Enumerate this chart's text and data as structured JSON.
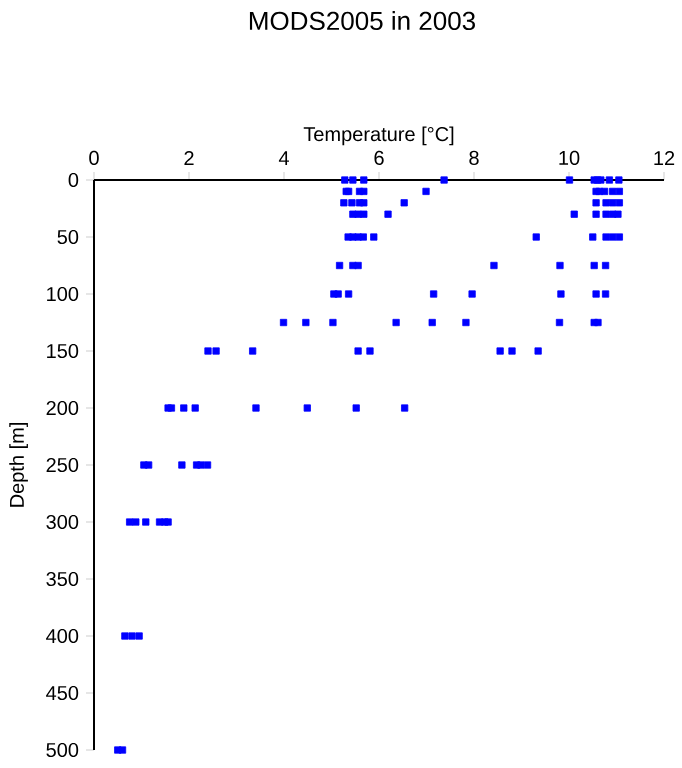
{
  "chart_data": {
    "type": "scatter",
    "title": "MODS2005 in 2003",
    "xlabel": "Temperature [°C]",
    "ylabel": "Depth [m]",
    "xlim": [
      0,
      12
    ],
    "xticks": [
      0,
      2,
      4,
      6,
      8,
      10,
      12
    ],
    "ylim": [
      500,
      0
    ],
    "yticks": [
      0,
      50,
      100,
      150,
      200,
      250,
      300,
      350,
      400,
      450,
      500
    ],
    "marker": "square",
    "series": [
      {
        "color": "#0000ff",
        "x": [
          5.28,
          5.45,
          5.68,
          7.37,
          10.01,
          10.53,
          10.6,
          10.67,
          10.85,
          11.05,
          5.31,
          5.36,
          5.59,
          5.68,
          6.99,
          10.57,
          10.64,
          10.75,
          10.92,
          11.06,
          5.26,
          5.43,
          5.59,
          5.68,
          6.53,
          10.57,
          10.78,
          10.92,
          11.06,
          5.45,
          5.56,
          5.68,
          6.19,
          10.11,
          10.57,
          10.78,
          10.92,
          11.03,
          5.35,
          5.45,
          5.56,
          5.67,
          5.89,
          9.31,
          10.5,
          10.78,
          10.92,
          11.06,
          5.17,
          5.45,
          5.56,
          8.42,
          9.81,
          10.53,
          10.77,
          5.05,
          5.14,
          5.36,
          7.15,
          7.96,
          9.83,
          10.57,
          10.77,
          3.99,
          4.46,
          5.03,
          6.36,
          7.12,
          7.83,
          9.8,
          10.53,
          10.61,
          2.4,
          2.57,
          3.34,
          5.56,
          5.81,
          8.55,
          8.8,
          9.35,
          1.56,
          1.63,
          1.89,
          2.13,
          3.41,
          4.49,
          5.52,
          6.54,
          1.05,
          1.15,
          1.85,
          2.16,
          2.25,
          2.39,
          0.75,
          0.88,
          1.09,
          1.38,
          1.49,
          1.56,
          0.65,
          0.8,
          0.95,
          0.5,
          0.6
        ],
        "values": [
          0,
          0,
          0,
          0,
          0,
          0,
          0,
          0,
          0,
          0,
          10,
          10,
          10,
          10,
          10,
          10,
          10,
          10,
          10,
          10,
          20,
          20,
          20,
          20,
          20,
          20,
          20,
          20,
          20,
          30,
          30,
          30,
          30,
          30,
          30,
          30,
          30,
          30,
          50,
          50,
          50,
          50,
          50,
          50,
          50,
          50,
          50,
          50,
          75,
          75,
          75,
          75,
          75,
          75,
          75,
          100,
          100,
          100,
          100,
          100,
          100,
          100,
          100,
          125,
          125,
          125,
          125,
          125,
          125,
          125,
          125,
          125,
          150,
          150,
          150,
          150,
          150,
          150,
          150,
          150,
          200,
          200,
          200,
          200,
          200,
          200,
          200,
          200,
          250,
          250,
          250,
          250,
          250,
          250,
          300,
          300,
          300,
          300,
          300,
          300,
          400,
          400,
          400,
          500,
          500
        ]
      }
    ]
  }
}
